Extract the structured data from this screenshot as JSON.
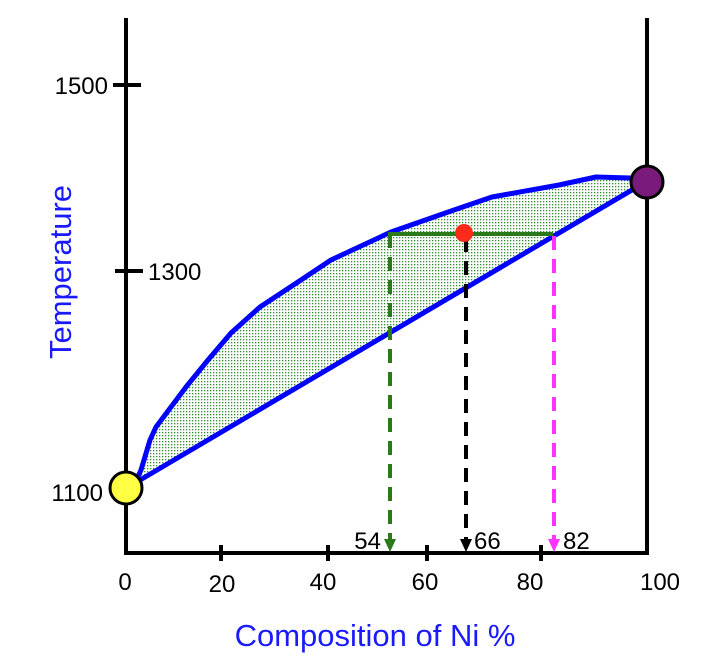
{
  "y_axis": {
    "title": "Temperature",
    "ticks": [
      "1500",
      "1300",
      "1100"
    ]
  },
  "x_axis": {
    "title": "Composition of Ni %",
    "ticks": [
      "0",
      "20",
      "40",
      "60",
      "80",
      "100"
    ]
  },
  "markers": {
    "solid_composition": "54",
    "overall_composition": "66",
    "liquid_composition": "82"
  },
  "colors": {
    "curves": "#0000ff",
    "two_phase_fill": "#2e8b2e",
    "tie_line": "#2a7a1a",
    "overall_point": "#ff2a1a",
    "pure_cu_point": "#ffff44",
    "pure_ni_point": "#7a1a7a",
    "liquid_arrow": "#ff33ff"
  }
}
